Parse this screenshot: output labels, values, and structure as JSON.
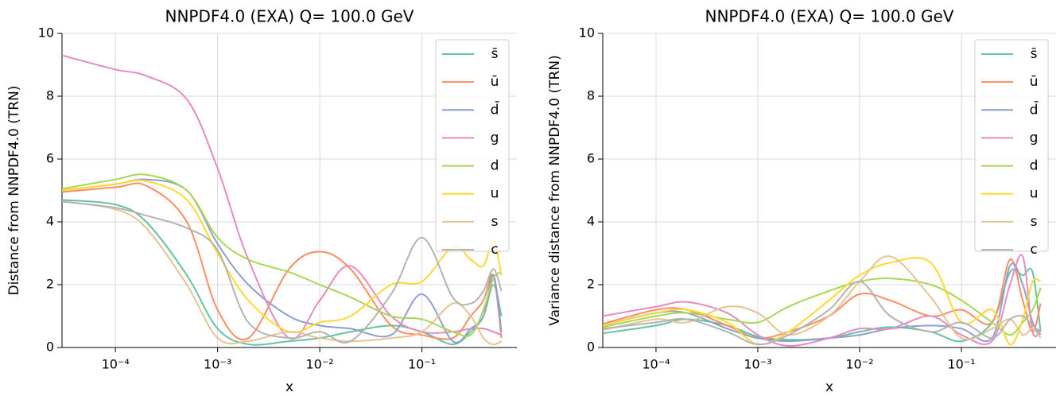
{
  "chart_data": [
    {
      "type": "line",
      "title": "NNPDF4.0 (EXA) Q= 100.0 GeV",
      "xlabel": "x",
      "ylabel": "Distance from NNPDF4.0 (TRN)",
      "xscale": "log",
      "grid": true,
      "legend": "upper right",
      "xlim": [
        3e-05,
        0.85
      ],
      "ylim": [
        0,
        10
      ],
      "xticks": [
        {
          "value": 0.0001,
          "label": "10⁻⁴"
        },
        {
          "value": 0.001,
          "label": "10⁻³"
        },
        {
          "value": 0.01,
          "label": "10⁻²"
        },
        {
          "value": 0.1,
          "label": "10⁻¹"
        }
      ],
      "yticks": [
        0,
        2,
        4,
        6,
        8,
        10
      ],
      "x": [
        3e-05,
        0.0001,
        0.0002,
        0.0005,
        0.001,
        0.002,
        0.005,
        0.01,
        0.02,
        0.05,
        0.1,
        0.2,
        0.3,
        0.4,
        0.5,
        0.6
      ],
      "series": [
        {
          "name": "s̄",
          "color": "#66c2a5",
          "values": [
            4.7,
            4.55,
            4.0,
            2.3,
            0.6,
            0.1,
            0.2,
            0.3,
            0.5,
            0.7,
            0.5,
            0.1,
            0.5,
            1.0,
            2.0,
            1.0
          ]
        },
        {
          "name": "ū",
          "color": "#fc8d62",
          "values": [
            4.95,
            5.1,
            5.15,
            4.0,
            1.2,
            0.3,
            2.5,
            3.05,
            2.5,
            0.7,
            0.4,
            0.3,
            1.0,
            1.5,
            2.3,
            0.3
          ]
        },
        {
          "name": "d̄",
          "color": "#8da0cb",
          "values": [
            5.0,
            5.2,
            5.35,
            5.0,
            3.3,
            2.0,
            1.0,
            0.7,
            0.6,
            0.4,
            1.7,
            0.2,
            0.6,
            1.0,
            2.3,
            0.5
          ]
        },
        {
          "name": "g",
          "color": "#e78ac3",
          "values": [
            9.3,
            8.85,
            8.65,
            7.9,
            5.7,
            2.8,
            0.3,
            1.5,
            2.6,
            1.0,
            0.5,
            0.5,
            0.6,
            0.6,
            0.5,
            0.4
          ]
        },
        {
          "name": "d",
          "color": "#a6d854",
          "values": [
            5.05,
            5.35,
            5.5,
            5.0,
            3.5,
            2.8,
            2.4,
            2.0,
            1.6,
            1.0,
            0.9,
            0.5,
            0.4,
            1.2,
            2.2,
            2.4
          ]
        },
        {
          "name": "u",
          "color": "#ffd92f",
          "values": [
            5.0,
            5.2,
            5.3,
            4.7,
            3.0,
            1.5,
            0.5,
            0.8,
            1.0,
            2.0,
            2.1,
            3.2,
            2.8,
            2.6,
            3.4,
            2.3
          ]
        },
        {
          "name": "s",
          "color": "#e5c494",
          "values": [
            4.65,
            4.4,
            3.8,
            2.0,
            0.3,
            0.2,
            0.5,
            0.3,
            0.2,
            0.3,
            0.5,
            1.4,
            1.0,
            0.3,
            0.1,
            0.2
          ]
        },
        {
          "name": "c",
          "color": "#b3b3b3",
          "values": [
            4.65,
            4.45,
            4.2,
            3.8,
            3.1,
            0.8,
            0.3,
            0.5,
            0.2,
            1.7,
            3.5,
            1.6,
            1.4,
            1.8,
            2.5,
            1.8
          ]
        }
      ]
    },
    {
      "type": "line",
      "title": "NNPDF4.0 (EXA) Q= 100.0 GeV",
      "xlabel": "x",
      "ylabel": "Variance distance from NNPDF4.0 (TRN)",
      "xscale": "log",
      "grid": true,
      "legend": "upper right",
      "xlim": [
        3e-05,
        0.85
      ],
      "ylim": [
        0,
        10
      ],
      "xticks": [
        {
          "value": 0.0001,
          "label": "10⁻⁴"
        },
        {
          "value": 0.001,
          "label": "10⁻³"
        },
        {
          "value": 0.01,
          "label": "10⁻²"
        },
        {
          "value": 0.1,
          "label": "10⁻¹"
        }
      ],
      "yticks": [
        0,
        2,
        4,
        6,
        8,
        10
      ],
      "x": [
        3e-05,
        0.0001,
        0.0002,
        0.0005,
        0.001,
        0.002,
        0.005,
        0.01,
        0.02,
        0.05,
        0.1,
        0.2,
        0.3,
        0.4,
        0.5,
        0.6
      ],
      "series": [
        {
          "name": "s̄",
          "color": "#66c2a5",
          "values": [
            0.45,
            0.7,
            0.9,
            0.7,
            0.35,
            0.25,
            0.3,
            0.5,
            0.65,
            0.5,
            0.2,
            0.8,
            2.4,
            2.3,
            2.4,
            0.5
          ]
        },
        {
          "name": "ū",
          "color": "#fc8d62",
          "values": [
            0.75,
            1.2,
            1.2,
            0.7,
            0.3,
            0.5,
            1.0,
            1.7,
            1.5,
            1.0,
            1.2,
            0.8,
            2.8,
            1.5,
            0.5,
            1.4
          ]
        },
        {
          "name": "d̄",
          "color": "#8da0cb",
          "values": [
            0.7,
            1.1,
            1.1,
            0.6,
            0.3,
            0.2,
            0.3,
            0.4,
            0.6,
            0.7,
            0.6,
            0.3,
            2.6,
            2.0,
            0.8,
            0.4
          ]
        },
        {
          "name": "g",
          "color": "#e78ac3",
          "values": [
            1.0,
            1.3,
            1.45,
            1.1,
            0.4,
            0.05,
            0.3,
            0.6,
            0.6,
            1.0,
            0.4,
            0.2,
            2.0,
            2.9,
            0.5,
            0.6
          ]
        },
        {
          "name": "d",
          "color": "#a6d854",
          "values": [
            0.65,
            1.0,
            1.1,
            0.9,
            0.8,
            1.3,
            1.8,
            2.1,
            2.2,
            2.0,
            1.5,
            0.8,
            0.4,
            0.8,
            1.2,
            1.9
          ]
        },
        {
          "name": "u",
          "color": "#ffd92f",
          "values": [
            0.7,
            1.1,
            1.2,
            0.8,
            0.1,
            0.5,
            1.5,
            2.3,
            2.7,
            2.7,
            0.8,
            1.2,
            0.1,
            0.9,
            2.1,
            2.1
          ]
        },
        {
          "name": "s",
          "color": "#e5c494",
          "values": [
            0.55,
            0.9,
            0.8,
            1.3,
            1.1,
            0.4,
            1.0,
            2.1,
            2.9,
            1.6,
            0.3,
            0.6,
            0.9,
            0.4,
            0.6,
            0.3
          ]
        },
        {
          "name": "c",
          "color": "#b3b3b3",
          "values": [
            0.6,
            0.8,
            0.9,
            0.5,
            0.1,
            0.4,
            1.2,
            2.1,
            1.0,
            0.5,
            0.8,
            0.3,
            0.9,
            1.0,
            0.7,
            0.5
          ]
        }
      ]
    }
  ]
}
